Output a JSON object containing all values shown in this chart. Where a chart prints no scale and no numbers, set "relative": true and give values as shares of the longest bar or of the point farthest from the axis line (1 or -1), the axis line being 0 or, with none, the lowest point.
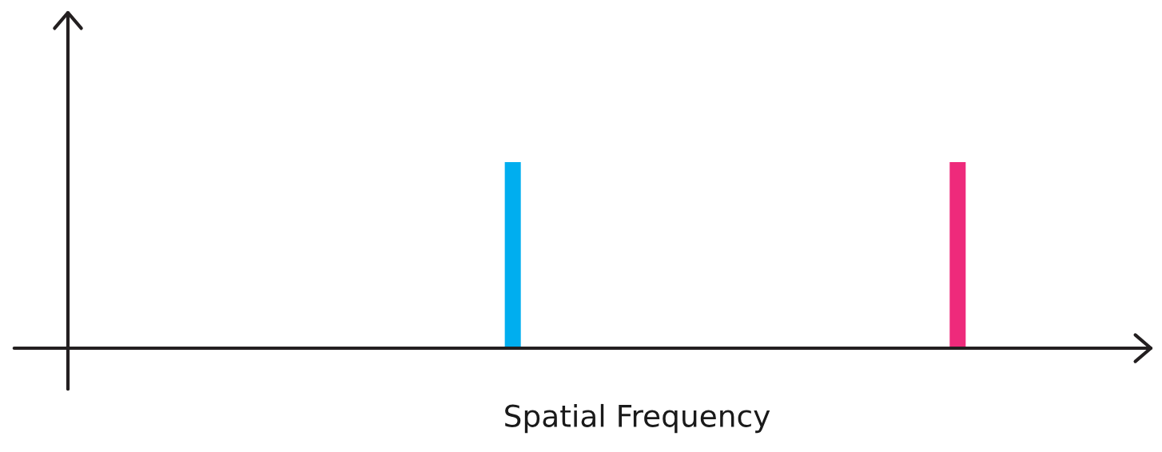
{
  "chart_data": {
    "type": "bar",
    "relative": true,
    "xlabel": "Spatial Frequency",
    "categories": [
      null,
      null
    ],
    "values": [
      1,
      1
    ],
    "colors": [
      "#00aeef",
      "#ee2a7b"
    ]
  }
}
